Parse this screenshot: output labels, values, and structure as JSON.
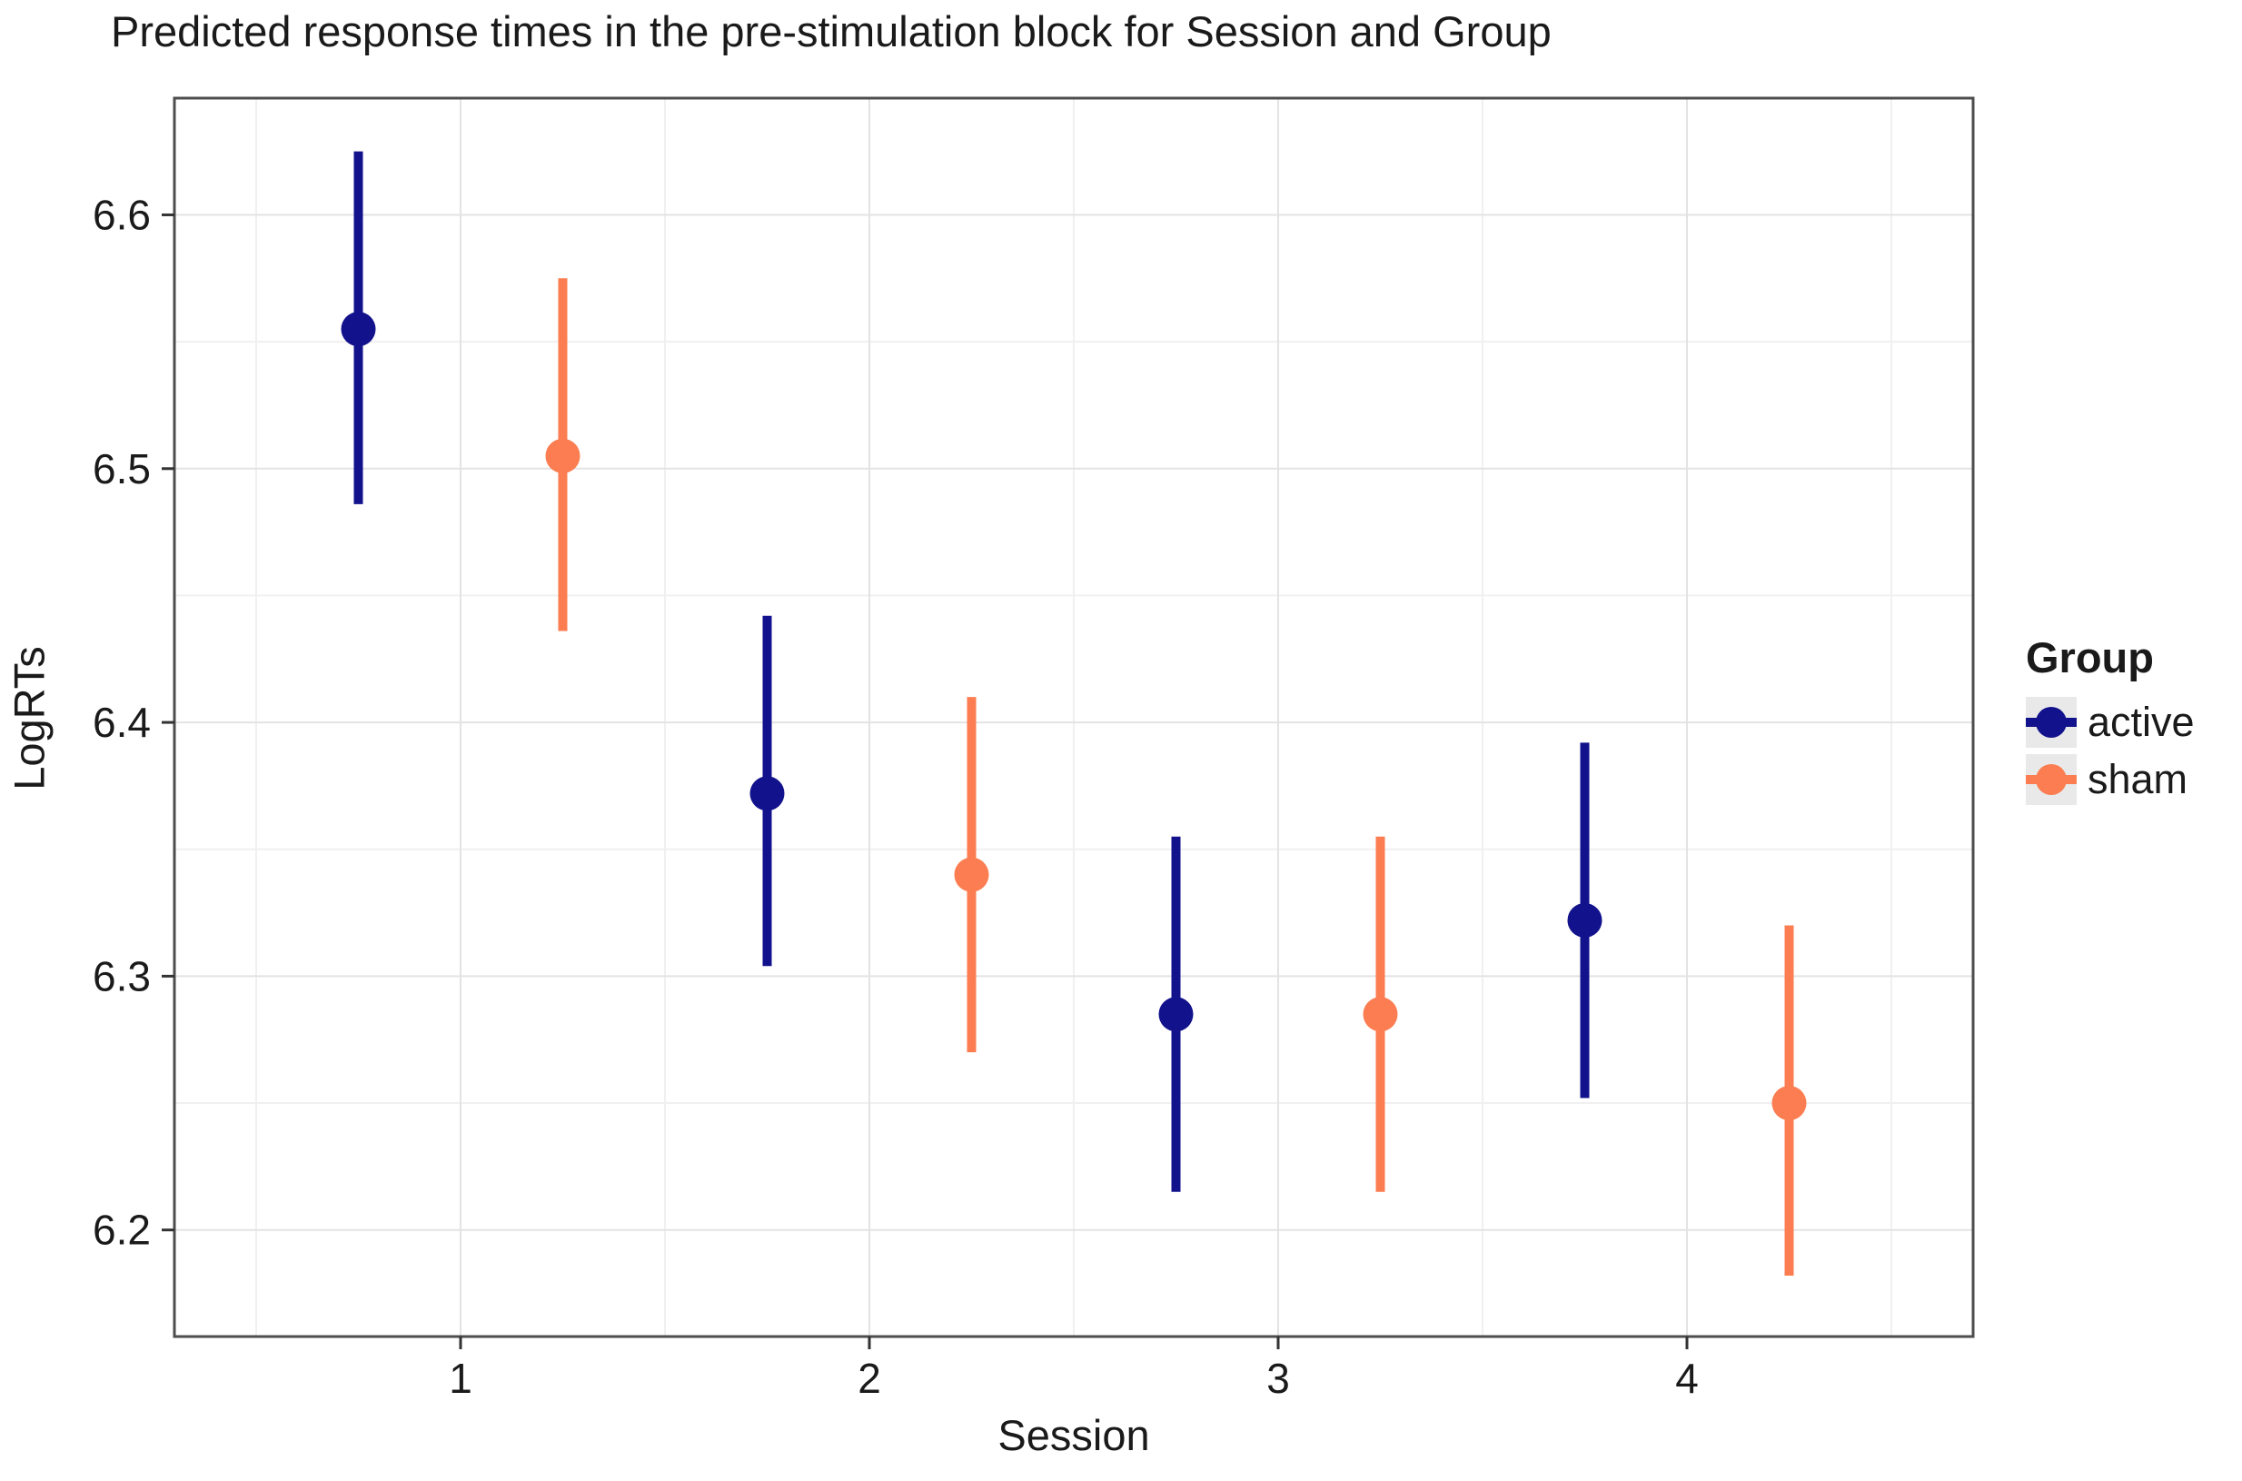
{
  "chart_data": {
    "type": "scatter",
    "title": "Predicted response times in the pre-stimulation block for Session and Group",
    "xlabel": "Session",
    "ylabel": "LogRTs",
    "xlim": [
      0.3,
      4.7
    ],
    "ylim": [
      6.158,
      6.646
    ],
    "x_ticks": [
      1,
      2,
      3,
      4
    ],
    "y_ticks": [
      6.2,
      6.3,
      6.4,
      6.5,
      6.6
    ],
    "x_minor_gridlines": [
      0.5,
      1.5,
      2.5,
      3.5,
      4.5
    ],
    "y_minor_gridlines": [
      6.25,
      6.35,
      6.45,
      6.55
    ],
    "grid": true,
    "legend_title": "Group",
    "legend_position": "right",
    "dodge_offset": 0.25,
    "categories": [
      1,
      2,
      3,
      4
    ],
    "series": [
      {
        "name": "active",
        "color": "#12128C",
        "x_offset": -0.25,
        "means": [
          6.555,
          6.372,
          6.285,
          6.322
        ],
        "lower": [
          6.486,
          6.304,
          6.215,
          6.252
        ],
        "upper": [
          6.625,
          6.442,
          6.355,
          6.392
        ]
      },
      {
        "name": "sham",
        "color": "#FB7D51",
        "x_offset": 0.25,
        "means": [
          6.505,
          6.34,
          6.285,
          6.25
        ],
        "lower": [
          6.436,
          6.27,
          6.215,
          6.182
        ],
        "upper": [
          6.575,
          6.41,
          6.355,
          6.32
        ]
      }
    ],
    "colors": {
      "active": "#12128C",
      "sham": "#FB7D51",
      "panel_border": "#4D4D4D",
      "major_grid": "#E3E3E3",
      "minor_grid": "#F0F0F0",
      "tick_mark": "#333333",
      "legend_key_bg": "#E9E9E9"
    }
  }
}
